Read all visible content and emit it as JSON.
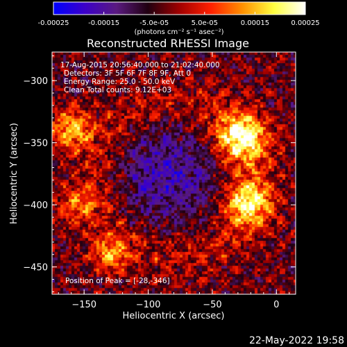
{
  "date_stamp": "22-May-2022 19:58",
  "colorbar": {
    "tick_labels": [
      "-0.00025",
      "-0.00015",
      "-5.0e-05",
      "5.0e-05",
      "0.00015",
      "0.00025"
    ],
    "tick_values": [
      -0.00025,
      -0.00015,
      -5e-05,
      5e-05,
      0.00015,
      0.00025
    ],
    "range": [
      -0.00025,
      0.00025
    ],
    "units_label": "(photons cm⁻² s⁻¹ asec⁻²)",
    "colors": [
      "#0000ff",
      "#3c00c8",
      "#5a1a80",
      "#200010",
      "#a00000",
      "#ff2000",
      "#ff9000",
      "#ffff40",
      "#ffffff"
    ]
  },
  "chart_data": {
    "type": "heatmap",
    "title": "Reconstructed RHESSI Image",
    "xlabel": "Heliocentric X (arcsec)",
    "ylabel": "Heliocentric Y (arcsec)",
    "xlim": [
      -175,
      15
    ],
    "ylim": [
      -472,
      -277
    ],
    "x_ticks": [
      -150,
      -100,
      -50,
      0
    ],
    "y_ticks": [
      -300,
      -350,
      -400,
      -450
    ],
    "x_tick_labels": [
      "−150",
      "−100",
      "−50",
      "0"
    ],
    "y_tick_labels": [
      "−300",
      "−350",
      "−400",
      "−450"
    ],
    "annotations": [
      "17-Aug-2015 20:56:40.000 to 21:02:40.000",
      "Detectors: 3F 5F 6F 7F 8F 9F, Att 0",
      "Energy Range: 25.0 - 50.0 keV",
      "Clean    Total counts: 9.12E+03"
    ],
    "peak_label": "Position of Peak = [-28,-346]",
    "peak": [
      -28,
      -346
    ],
    "bright_sources": [
      {
        "x": -28,
        "y": -346,
        "peak": 0.00025,
        "sigma": 14
      },
      {
        "x": -22,
        "y": -398,
        "peak": 0.00022,
        "sigma": 13
      },
      {
        "x": -160,
        "y": -340,
        "peak": 0.00018,
        "sigma": 12
      },
      {
        "x": -130,
        "y": -440,
        "peak": 0.00016,
        "sigma": 10
      },
      {
        "x": -155,
        "y": -400,
        "peak": 0.00012,
        "sigma": 11
      }
    ],
    "ring_center": [
      -78,
      -380
    ],
    "ring_radius": 62,
    "ring_strength": 9e-05,
    "faint_region": {
      "x": -85,
      "y": -375,
      "sigma": 28,
      "value": -0.00012
    }
  }
}
